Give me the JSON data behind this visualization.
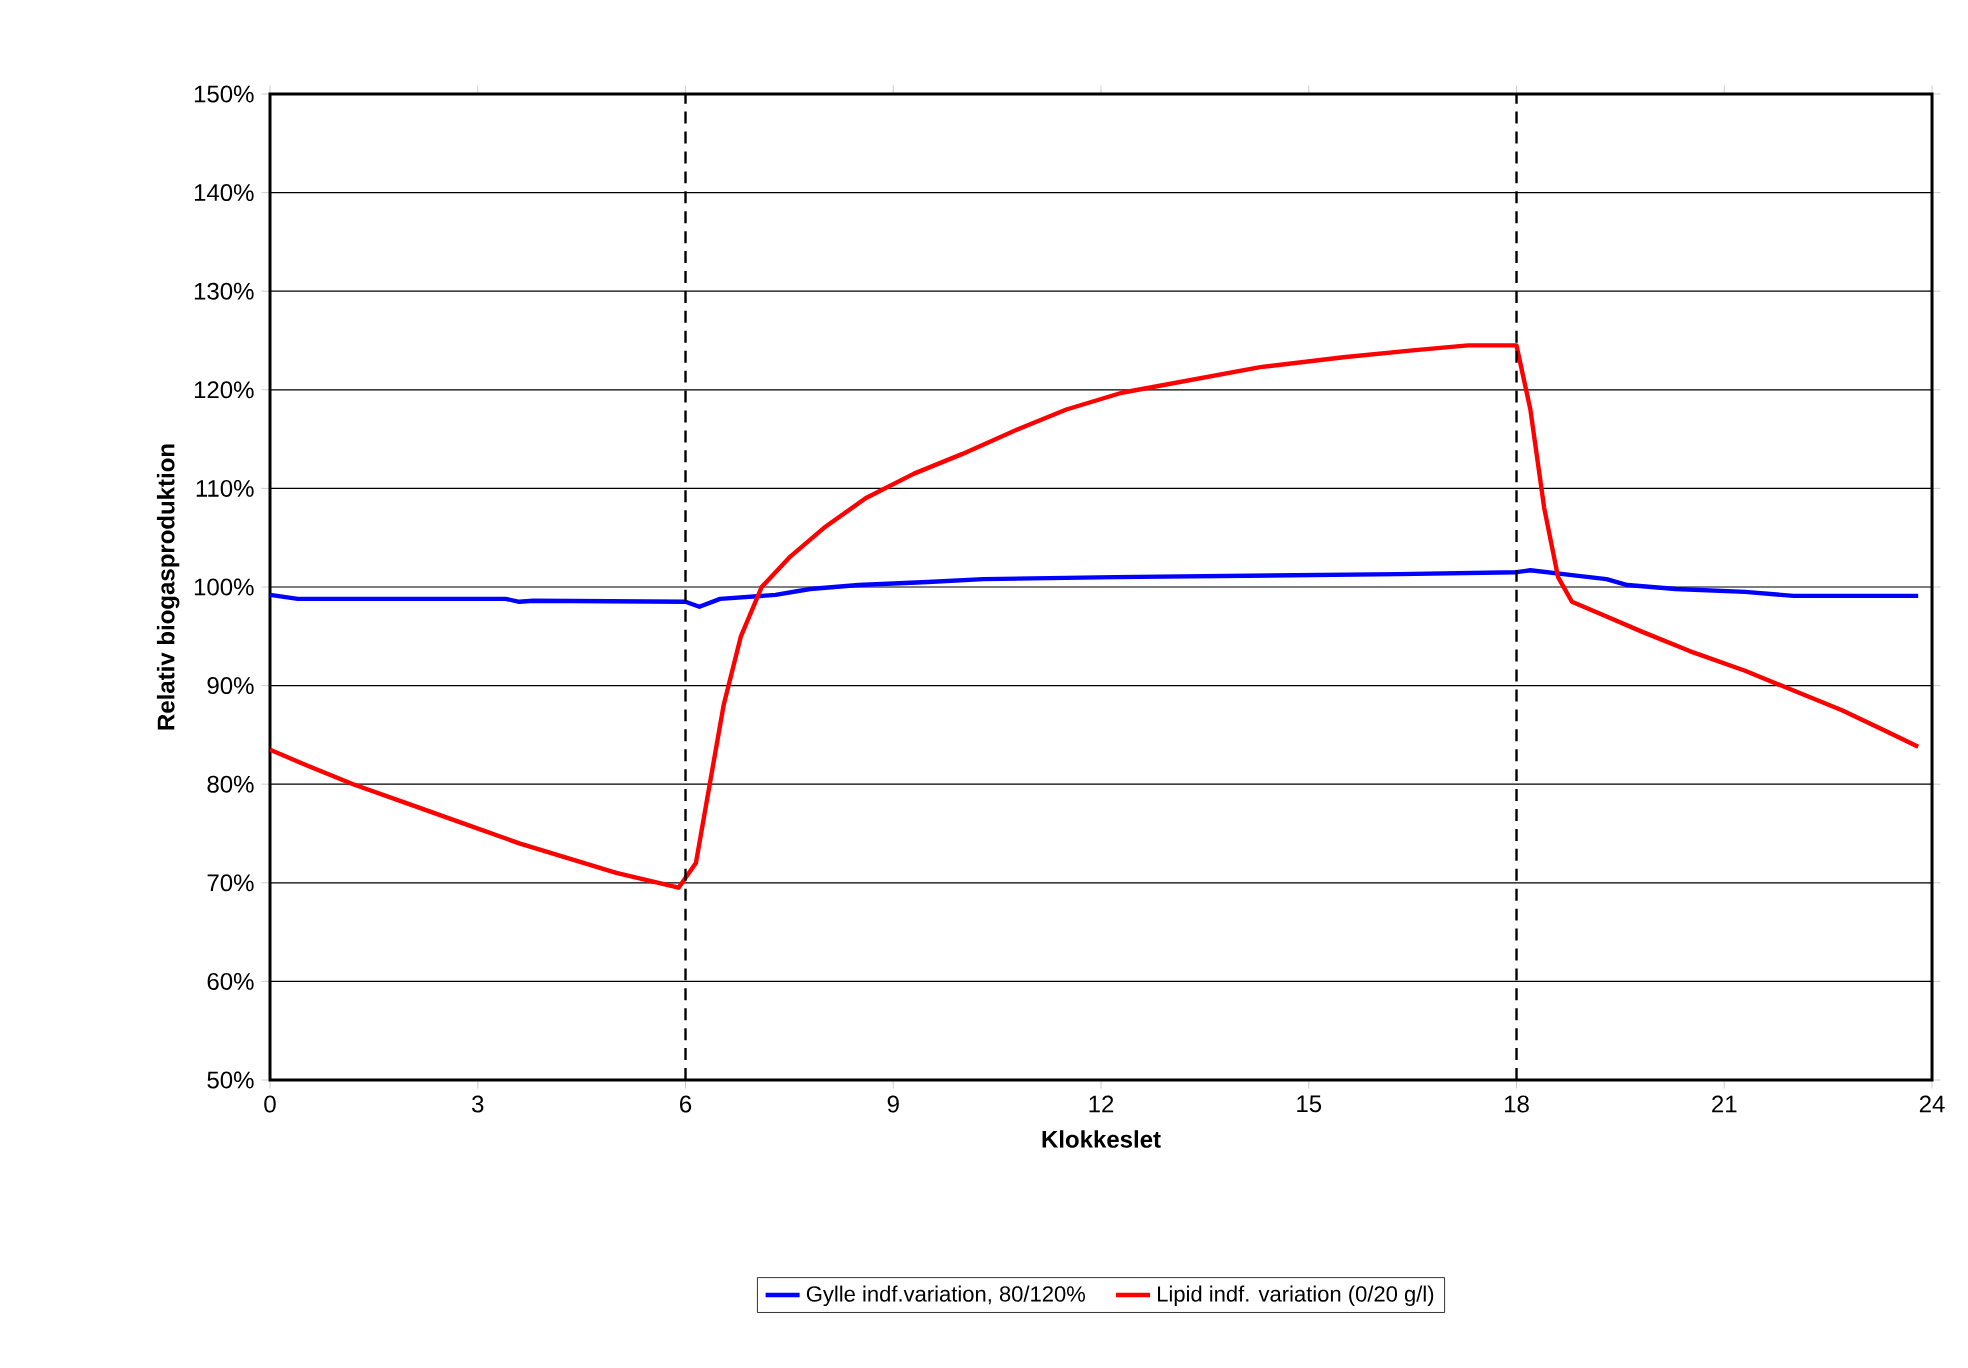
{
  "chart_data": {
    "type": "line",
    "xlabel": "Klokkeslet",
    "ylabel": "Relativ biogasproduktion",
    "xlim": [
      0,
      24
    ],
    "xticks": [
      0,
      3,
      6,
      9,
      12,
      15,
      18,
      21,
      24
    ],
    "ylim": [
      50,
      150
    ],
    "yticks": [
      {
        "value": 50,
        "label": "50%"
      },
      {
        "value": 60,
        "label": "60%"
      },
      {
        "value": 70,
        "label": "70%"
      },
      {
        "value": 80,
        "label": "80%"
      },
      {
        "value": 90,
        "label": "90%"
      },
      {
        "value": 100,
        "label": "100%"
      },
      {
        "value": 110,
        "label": "110%"
      },
      {
        "value": 120,
        "label": "120%"
      },
      {
        "value": 130,
        "label": "130%"
      },
      {
        "value": 140,
        "label": "140%"
      },
      {
        "value": 150,
        "label": "150%"
      }
    ],
    "grid": "y",
    "legend": "bottom",
    "marker": "none",
    "line_style": "solid",
    "ref_lines": [
      {
        "axis": "x",
        "value": 6,
        "line_style": "dashed",
        "color": "#000000"
      },
      {
        "axis": "x",
        "value": 18,
        "line_style": "dashed",
        "color": "#000000"
      }
    ],
    "series": [
      {
        "name": "Gylle indf.variation, 80/120%",
        "color": "#0000ff",
        "x": [
          0,
          0.4,
          3.4,
          3.6,
          3.8,
          6.0,
          6.2,
          6.5,
          7.3,
          7.8,
          8.5,
          9.5,
          10.3,
          12.2,
          16.3,
          18.0,
          18.2,
          18.8,
          19.3,
          19.6,
          20.3,
          21.3,
          22.0,
          23.8
        ],
        "values": [
          99.2,
          98.8,
          98.8,
          98.5,
          98.6,
          98.5,
          98.0,
          98.8,
          99.2,
          99.8,
          100.2,
          100.5,
          100.8,
          101.0,
          101.3,
          101.5,
          101.7,
          101.2,
          100.8,
          100.2,
          99.8,
          99.5,
          99.1,
          99.1
        ]
      },
      {
        "name": "Lipid indf. variation (0/20 g/l)",
        "color": "#ff0000",
        "x": [
          0,
          0.5,
          1.2,
          2,
          2.8,
          3.6,
          4.3,
          5,
          5.6,
          5.9,
          6.15,
          6.35,
          6.55,
          6.8,
          7.1,
          7.5,
          8,
          8.6,
          9.3,
          10,
          10.8,
          11.5,
          12.3,
          13.3,
          14.3,
          15.5,
          16.5,
          17.3,
          18,
          18.2,
          18.4,
          18.6,
          18.8,
          19.3,
          19.8,
          20.5,
          21.3,
          22,
          22.7,
          23.3,
          23.8
        ],
        "values": [
          83.5,
          82,
          80,
          78,
          76,
          74,
          72.5,
          71,
          70,
          69.5,
          72,
          80,
          88,
          95,
          100,
          103,
          106,
          109,
          111.5,
          113.5,
          116,
          118,
          119.7,
          121,
          122.3,
          123.3,
          124,
          124.5,
          124.5,
          118,
          108,
          101,
          98.5,
          97,
          95.5,
          93.5,
          91.5,
          89.5,
          87.5,
          85.5,
          83.8
        ]
      }
    ]
  }
}
